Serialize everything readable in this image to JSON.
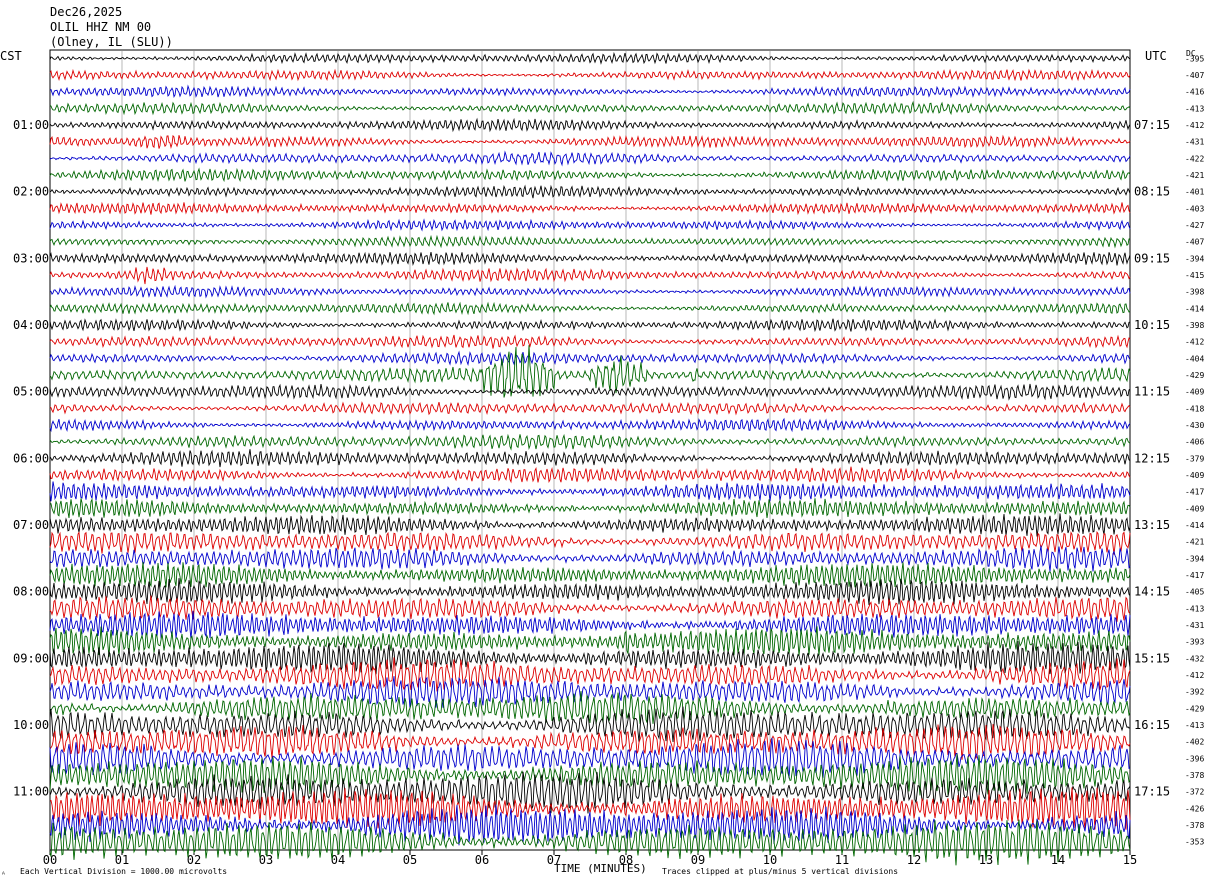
{
  "header": {
    "date": "Dec26,2025",
    "station": "OLIL HHZ NM 00",
    "location": "(Olney, IL (SLU))"
  },
  "left_axis_label": "CST",
  "right_axis_label": "UTC",
  "dc_label": "DC",
  "footer": {
    "scale_note": "Each Vertical Division = 1000.00 microvolts",
    "xlabel": "TIME (MINUTES)",
    "clip_note": "Traces clipped at plus/minus 5 vertical divisions",
    "corner_mark": "ᴬ"
  },
  "chart_data": {
    "type": "line",
    "xlabel": "TIME (MINUTES)",
    "xlim": [
      0,
      15
    ],
    "x_ticks": [
      "00",
      "01",
      "02",
      "03",
      "04",
      "05",
      "06",
      "07",
      "08",
      "09",
      "10",
      "11",
      "12",
      "13",
      "14",
      "15"
    ],
    "left_hour_labels": [
      "01:00",
      "02:00",
      "03:00",
      "04:00",
      "05:00",
      "06:00",
      "07:00",
      "08:00",
      "09:00",
      "10:00",
      "11:00"
    ],
    "right_hour_labels": [
      "07:15",
      "08:15",
      "09:15",
      "10:15",
      "11:15",
      "12:15",
      "13:15",
      "14:15",
      "15:15",
      "16:15",
      "17:15"
    ],
    "trace_colors": [
      "#000000",
      "#dd0000",
      "#0000cc",
      "#006600"
    ],
    "trace_count": 48,
    "dc_offsets": [
      -395,
      -407,
      -416,
      -413,
      -412,
      -431,
      -422,
      -421,
      -401,
      -403,
      -427,
      -407,
      -394,
      -415,
      -398,
      -414,
      -398,
      -412,
      -404,
      -429,
      -409,
      -418,
      -430,
      -406,
      -379,
      -409,
      -417,
      -409,
      -414,
      -421,
      -394,
      -417,
      -405,
      -413,
      -431,
      -393,
      -432,
      -412,
      -392,
      -429,
      -413,
      -402,
      -396,
      -378,
      -372,
      -426,
      -378,
      -353
    ],
    "trace_amplitude_divisions": [
      0.25,
      0.25,
      0.25,
      0.28,
      0.28,
      0.3,
      0.3,
      0.3,
      0.28,
      0.28,
      0.25,
      0.25,
      0.3,
      0.3,
      0.25,
      0.28,
      0.28,
      0.3,
      0.3,
      0.35,
      0.35,
      0.3,
      0.3,
      0.35,
      0.4,
      0.4,
      0.45,
      0.45,
      0.5,
      0.55,
      0.55,
      0.6,
      0.6,
      0.6,
      0.65,
      0.7,
      0.75,
      0.75,
      0.75,
      0.8,
      0.85,
      0.85,
      0.9,
      0.95,
      1.0,
      1.0,
      1.0,
      1.05
    ],
    "events": [
      {
        "trace": 5,
        "start_min": 1.0,
        "end_min": 2.0,
        "peak_divisions": 0.7
      },
      {
        "trace": 13,
        "start_min": 1.0,
        "end_min": 1.8,
        "peak_divisions": 0.7
      },
      {
        "trace": 19,
        "start_min": 6.0,
        "end_min": 7.0,
        "peak_divisions": 2.5
      },
      {
        "trace": 19,
        "start_min": 7.5,
        "end_min": 8.3,
        "peak_divisions": 1.6
      },
      {
        "trace": 19,
        "start_min": 8.9,
        "end_min": 9.0,
        "peak_divisions": 1.0
      },
      {
        "trace": 33,
        "start_min": 11.7,
        "end_min": 12.0,
        "peak_divisions": 1.0
      },
      {
        "trace": 35,
        "start_min": 7.8,
        "end_min": 8.2,
        "peak_divisions": 1.0
      },
      {
        "trace": 35,
        "start_min": 8.8,
        "end_min": 9.3,
        "peak_divisions": 0.9
      }
    ],
    "grid": true
  }
}
